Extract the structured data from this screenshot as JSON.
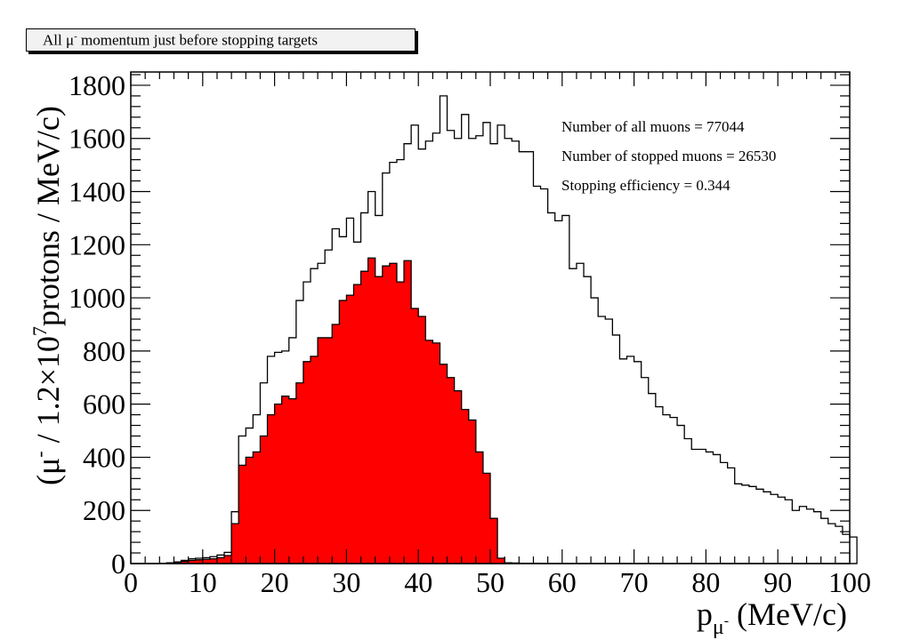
{
  "chart_data": {
    "type": "histogram",
    "title": {
      "prefix": "All ",
      "mu": "μ",
      "sup": "-",
      "rest": " momentum just before stopping targets"
    },
    "xlabel": {
      "main": "p",
      "sub": "μ",
      "subsup": "-",
      "rest": " (MeV/c)"
    },
    "ylabel": {
      "a": "(μ",
      "a_sup": "-",
      "b": " / 1.2×10",
      "b_sup": "7",
      "c": "protons / MeV/c)"
    },
    "xlim": [
      0,
      100
    ],
    "ylim": [
      0,
      1850
    ],
    "bin_width": 1,
    "x_ticks": [
      0,
      10,
      20,
      30,
      40,
      50,
      60,
      70,
      80,
      90,
      100
    ],
    "y_ticks": [
      0,
      200,
      400,
      600,
      800,
      1000,
      1200,
      1400,
      1600,
      1800
    ],
    "stats": [
      "Number of all muons = 77044",
      "Number of stopped muons = 26530",
      "Stopping efficiency = 0.344"
    ],
    "series": [
      {
        "fill": "none",
        "line_color": "#000000",
        "bins_start": 0,
        "values": [
          0,
          0,
          0,
          0,
          1,
          3,
          6,
          12,
          18,
          20,
          22,
          26,
          32,
          42,
          195,
          480,
          510,
          560,
          680,
          780,
          795,
          800,
          850,
          990,
          1060,
          1110,
          1130,
          1180,
          1260,
          1230,
          1300,
          1210,
          1320,
          1400,
          1310,
          1470,
          1510,
          1520,
          1580,
          1650,
          1560,
          1590,
          1620,
          1760,
          1630,
          1600,
          1690,
          1600,
          1610,
          1660,
          1580,
          1650,
          1600,
          1590,
          1550,
          1550,
          1420,
          1410,
          1320,
          1290,
          1310,
          1110,
          1130,
          1080,
          1000,
          930,
          920,
          860,
          770,
          780,
          760,
          700,
          640,
          590,
          560,
          550,
          520,
          470,
          430,
          430,
          420,
          410,
          380,
          360,
          300,
          295,
          290,
          280,
          270,
          260,
          250,
          240,
          200,
          215,
          205,
          195,
          170,
          150,
          140,
          110,
          100
        ]
      },
      {
        "fill": "#ff0000",
        "line_color": "#000000",
        "bins_start": 0,
        "values": [
          0,
          0,
          0,
          0,
          0,
          2,
          4,
          8,
          12,
          14,
          16,
          18,
          22,
          30,
          150,
          370,
          400,
          420,
          480,
          560,
          600,
          630,
          620,
          680,
          760,
          780,
          850,
          850,
          900,
          990,
          1010,
          1050,
          1100,
          1150,
          1080,
          1120,
          1130,
          1060,
          1140,
          960,
          930,
          840,
          830,
          750,
          700,
          650,
          580,
          540,
          420,
          340,
          170,
          20,
          3,
          2,
          1,
          1,
          1,
          0,
          0,
          0,
          0,
          0,
          0,
          0,
          0,
          0,
          0,
          0,
          0,
          0,
          0,
          0,
          0,
          0,
          0,
          0,
          0,
          0,
          0,
          0,
          0,
          0,
          0,
          0,
          0,
          0,
          0,
          0,
          0,
          0,
          0,
          0,
          0,
          0,
          0,
          0,
          0,
          0,
          0,
          0,
          0
        ]
      }
    ]
  }
}
